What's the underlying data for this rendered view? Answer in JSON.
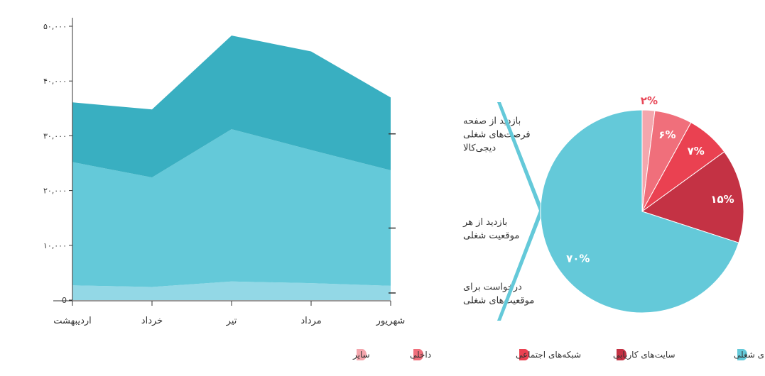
{
  "chart_data": [
    {
      "type": "area",
      "stacked": true,
      "categories": [
        "اردیبهشت",
        "خرداد",
        "تیر",
        "مرداد",
        "شهریور"
      ],
      "ylim": [
        0,
        50000
      ],
      "yticks": [
        0,
        10000,
        20000,
        30000,
        40000,
        50000
      ],
      "ytick_labels": [
        "0",
        "۱۰,۰۰۰",
        "۲۰,۰۰۰",
        "۳۰,۰۰۰",
        "۴۰,۰۰۰",
        "۵۰,۰۰۰"
      ],
      "grid": false,
      "series": [
        {
          "name": "درخواست برای موقعیت‌های شغلی",
          "label_lines": [
            "درخواست برای",
            "موقعیت‌های شغلی"
          ],
          "values": [
            2700,
            2400,
            3400,
            3100,
            2600
          ],
          "color": "#93d8e6"
        },
        {
          "name": "بازدید از هر موقعیت شغلی",
          "label_lines": [
            "بازدید از هر",
            "موقعیت شغلی"
          ],
          "values": [
            22500,
            20000,
            27800,
            24300,
            21100
          ],
          "color": "#64c9d9"
        },
        {
          "name": "بازدید از صفحه فرصت‌های شغلی دیجی‌کالا",
          "label_lines": [
            "بازدید از صفحه",
            "فرصت‌های شغلی",
            "دیجی‌کالا"
          ],
          "values": [
            10900,
            12400,
            17100,
            18000,
            13300
          ],
          "color": "#39afc1"
        }
      ]
    },
    {
      "type": "pie",
      "slices": [
        {
          "name": "سایر",
          "value": 2,
          "label": "۲%",
          "color": "#f4a6ad"
        },
        {
          "name": "داخلی",
          "value": 6,
          "label": "۶%",
          "color": "#f06f7b"
        },
        {
          "name": "شبکه‌های اجتماعی",
          "value": 7,
          "label": "۷%",
          "color": "#ea4151"
        },
        {
          "name": "سایت‌های کاریابی",
          "value": 15,
          "label": "۱۵%",
          "color": "#c43244"
        },
        {
          "name": "صفحه فرصت‌های شغلی",
          "value": 70,
          "label": "۷۰%",
          "color": "#64c9d9"
        }
      ],
      "legend": [
        {
          "name": "صفحه فرصت‌های شغلی",
          "color": "#64c9d9"
        },
        {
          "name": "سایت‌های کاریابی",
          "color": "#c43244"
        },
        {
          "name": "شبکه‌های اجتماعی",
          "color": "#ea4151"
        },
        {
          "name": "داخلی",
          "color": "#f06f7b"
        },
        {
          "name": "سایر",
          "color": "#f4a6ad"
        }
      ],
      "legend_position": "bottom"
    }
  ]
}
